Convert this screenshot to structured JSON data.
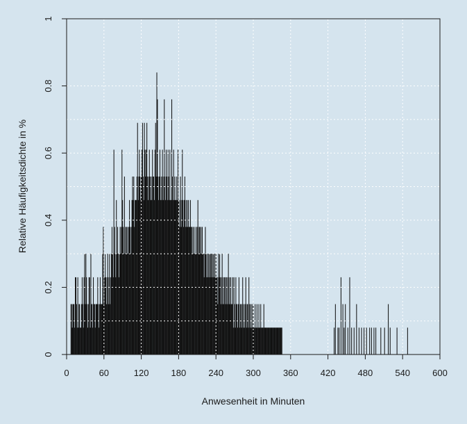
{
  "chart_data": {
    "type": "bar",
    "xlabel": "Anwesenheit in Minuten",
    "ylabel": "Relative Häufigkeitsdichte in %",
    "xlim": [
      0,
      600
    ],
    "ylim": [
      0,
      1
    ],
    "x_ticks": [
      0,
      60,
      120,
      180,
      240,
      300,
      360,
      420,
      480,
      540,
      600
    ],
    "y_ticks": [
      0,
      0.2,
      0.4,
      0.6,
      0.8,
      1
    ],
    "y_tick_labels": [
      "0",
      "0.2",
      "0.4",
      "0.6",
      "0.8",
      "1"
    ],
    "grid": "white dotted overlay lines on bars",
    "colors": {
      "bars": "#111111",
      "background": "#d5e4ee",
      "grid": "#ffffff"
    },
    "bin_width_minutes": 1,
    "x_start": 7,
    "values": [
      0.15,
      0.15,
      0.08,
      0.15,
      0.15,
      0.15,
      0.08,
      0.23,
      0.23,
      0.15,
      0.08,
      0.23,
      0.08,
      0.15,
      0.15,
      0.08,
      0.08,
      0.15,
      0.23,
      0.15,
      0.08,
      0.23,
      0.3,
      0.15,
      0.3,
      0.23,
      0.15,
      0.08,
      0.15,
      0.23,
      0.23,
      0.08,
      0.3,
      0.15,
      0.15,
      0.08,
      0.23,
      0.15,
      0.15,
      0.08,
      0.15,
      0.15,
      0.15,
      0.23,
      0.15,
      0.08,
      0.15,
      0.23,
      0.15,
      0.15,
      0.15,
      0.3,
      0.38,
      0.15,
      0.23,
      0.3,
      0.23,
      0.15,
      0.23,
      0.3,
      0.15,
      0.23,
      0.3,
      0.15,
      0.23,
      0.3,
      0.38,
      0.3,
      0.23,
      0.61,
      0.38,
      0.3,
      0.23,
      0.46,
      0.3,
      0.38,
      0.3,
      0.23,
      0.3,
      0.38,
      0.3,
      0.38,
      0.61,
      0.46,
      0.38,
      0.3,
      0.53,
      0.3,
      0.38,
      0.38,
      0.3,
      0.38,
      0.3,
      0.38,
      0.46,
      0.38,
      0.3,
      0.38,
      0.46,
      0.53,
      0.46,
      0.53,
      0.38,
      0.46,
      0.46,
      0.46,
      0.53,
      0.69,
      0.46,
      0.53,
      0.61,
      0.53,
      0.46,
      0.53,
      0.61,
      0.69,
      0.53,
      0.46,
      0.69,
      0.61,
      0.53,
      0.61,
      0.69,
      0.53,
      0.46,
      0.53,
      0.61,
      0.53,
      0.46,
      0.53,
      0.46,
      0.61,
      0.53,
      0.53,
      0.46,
      0.61,
      0.69,
      0.53,
      0.84,
      0.76,
      0.53,
      0.46,
      0.53,
      0.61,
      0.46,
      0.53,
      0.46,
      0.61,
      0.53,
      0.46,
      0.76,
      0.53,
      0.46,
      0.61,
      0.53,
      0.46,
      0.61,
      0.53,
      0.46,
      0.61,
      0.46,
      0.46,
      0.76,
      0.53,
      0.46,
      0.61,
      0.46,
      0.53,
      0.46,
      0.46,
      0.53,
      0.46,
      0.61,
      0.46,
      0.38,
      0.46,
      0.53,
      0.38,
      0.46,
      0.61,
      0.46,
      0.38,
      0.46,
      0.53,
      0.38,
      0.46,
      0.38,
      0.46,
      0.38,
      0.46,
      0.38,
      0.38,
      0.46,
      0.38,
      0.38,
      0.3,
      0.38,
      0.3,
      0.38,
      0.3,
      0.3,
      0.38,
      0.3,
      0.38,
      0.46,
      0.3,
      0.38,
      0.38,
      0.3,
      0.38,
      0.3,
      0.38,
      0.3,
      0.3,
      0.23,
      0.3,
      0.38,
      0.3,
      0.23,
      0.3,
      0.23,
      0.3,
      0.23,
      0.3,
      0.3,
      0.23,
      0.3,
      0.3,
      0.23,
      0.3,
      0.23,
      0.3,
      0.23,
      0.3,
      0.23,
      0.23,
      0.15,
      0.3,
      0.23,
      0.3,
      0.23,
      0.15,
      0.23,
      0.3,
      0.15,
      0.23,
      0.15,
      0.23,
      0.23,
      0.15,
      0.23,
      0.15,
      0.23,
      0.3,
      0.15,
      0.23,
      0.15,
      0.23,
      0.15,
      0.15,
      0.23,
      0.08,
      0.23,
      0.15,
      0.08,
      0.23,
      0.15,
      0.15,
      0.08,
      0.15,
      0.23,
      0.08,
      0.15,
      0.15,
      0.08,
      0.15,
      0.23,
      0.08,
      0.15,
      0.08,
      0.15,
      0.23,
      0.08,
      0.15,
      0.15,
      0.08,
      0.23,
      0.15,
      0.08,
      0.15,
      0.08,
      0.15,
      0.08,
      0.15,
      0.08,
      0.08,
      0.15,
      0.08,
      0.08,
      0.15,
      0.08,
      0.08,
      0.15,
      0.08,
      0.08,
      0.15,
      0.08,
      0.08,
      0.08,
      0.08,
      0.15,
      0.08,
      0.08,
      0.08,
      0.08,
      0.08,
      0.08,
      0.08,
      0.08,
      0.08,
      0.08,
      0.08,
      0.08,
      0.08,
      0.08,
      0.08,
      0.08,
      0.08,
      0.08,
      0.08,
      0.08,
      0.08,
      0.08,
      0.08,
      0.08,
      0.08,
      0.08,
      0.08,
      0.08,
      0.08
    ],
    "sparse_bars": [
      [
        430,
        0.08
      ],
      [
        432,
        0.15
      ],
      [
        436,
        0.08
      ],
      [
        438,
        0.08
      ],
      [
        441,
        0.23
      ],
      [
        444,
        0.15
      ],
      [
        446,
        0.08
      ],
      [
        448,
        0.15
      ],
      [
        452,
        0.08
      ],
      [
        455,
        0.23
      ],
      [
        458,
        0.08
      ],
      [
        462,
        0.08
      ],
      [
        466,
        0.15
      ],
      [
        470,
        0.08
      ],
      [
        474,
        0.08
      ],
      [
        478,
        0.08
      ],
      [
        482,
        0.08
      ],
      [
        487,
        0.08
      ],
      [
        490,
        0.08
      ],
      [
        494,
        0.08
      ],
      [
        497,
        0.08
      ],
      [
        505,
        0.08
      ],
      [
        511,
        0.08
      ],
      [
        517,
        0.15
      ],
      [
        520,
        0.08
      ],
      [
        531,
        0.08
      ],
      [
        548,
        0.08
      ]
    ]
  }
}
